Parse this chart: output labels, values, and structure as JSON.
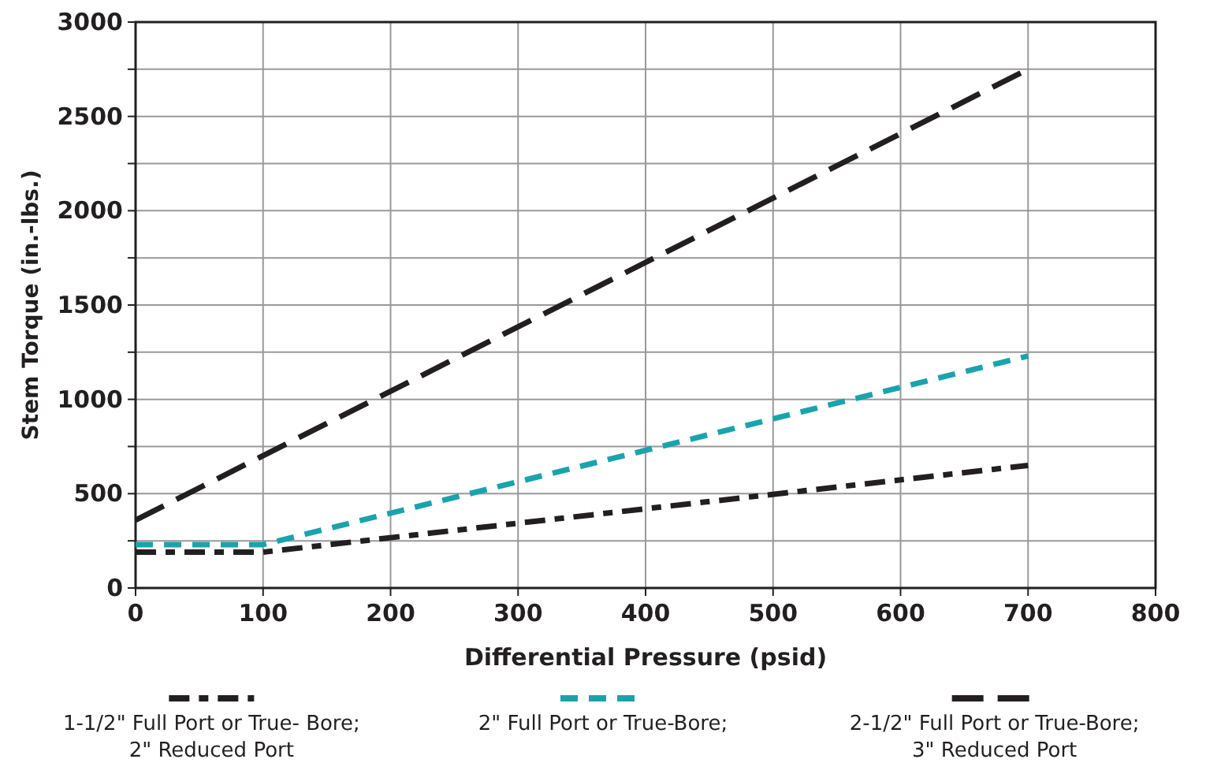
{
  "chart_data": {
    "type": "line",
    "xlabel": "Differential Pressure (psid)",
    "ylabel": "Stem Torque (in.-lbs.)",
    "xlim": [
      0,
      800
    ],
    "xticks": [
      0,
      100,
      200,
      300,
      400,
      500,
      600,
      700,
      800
    ],
    "ylim": [
      0,
      3000
    ],
    "yticks": [
      0,
      {
        "value": 250,
        "label": null
      },
      500,
      {
        "value": 750,
        "label": null
      },
      1000,
      {
        "value": 1250,
        "label": null
      },
      1500,
      {
        "value": 1750,
        "label": null
      },
      2000,
      {
        "value": 2250,
        "label": null
      },
      2500,
      {
        "value": 2750,
        "label": null
      },
      3000
    ],
    "grid": true,
    "legend": "bottom",
    "marker": "none",
    "series": [
      {
        "name": "1-1/2\" Full Port or True- Bore;\n2\" Reduced Port",
        "color": "#231f20",
        "line_style": "dashdot",
        "x": [
          0,
          100,
          700
        ],
        "values": [
          190,
          190,
          650
        ]
      },
      {
        "name": "2\" Full Port or True-Bore;",
        "color": "#1ba3ad",
        "line_style": "dashed",
        "x": [
          0,
          100,
          700
        ],
        "values": [
          230,
          230,
          1230
        ]
      },
      {
        "name": "2-1/2\" Full Port or True-Bore;\n3\" Reduced Port",
        "color": "#231f20",
        "line_style": "longdash",
        "x": [
          0,
          700
        ],
        "values": [
          360,
          2750
        ]
      }
    ]
  }
}
